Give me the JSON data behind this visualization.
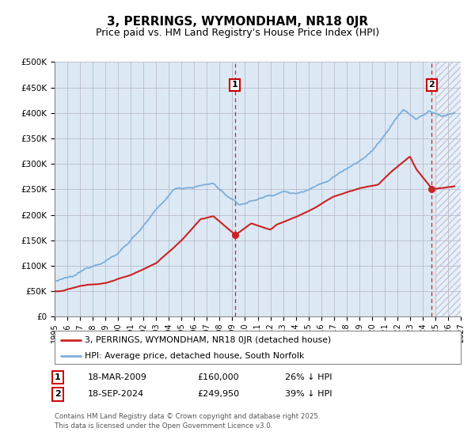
{
  "title": "3, PERRINGS, WYMONDHAM, NR18 0JR",
  "subtitle": "Price paid vs. HM Land Registry's House Price Index (HPI)",
  "ylim": [
    0,
    500000
  ],
  "xlim_start": 1995,
  "xlim_end": 2027,
  "yticks": [
    0,
    50000,
    100000,
    150000,
    200000,
    250000,
    300000,
    350000,
    400000,
    450000,
    500000
  ],
  "ytick_labels": [
    "£0",
    "£50K",
    "£100K",
    "£150K",
    "£200K",
    "£250K",
    "£300K",
    "£350K",
    "£400K",
    "£450K",
    "£500K"
  ],
  "hpi_color": "#7aaddb",
  "price_color": "#cc2222",
  "grid_color": "#bbbbcc",
  "bg_color": "#dce9f5",
  "sale1_x": 2009.21,
  "sale1_y": 160000,
  "sale2_x": 2024.72,
  "sale2_y": 249950,
  "shaded_start": 2025.0,
  "legend_line1": "3, PERRINGS, WYMONDHAM, NR18 0JR (detached house)",
  "legend_line2": "HPI: Average price, detached house, South Norfolk",
  "table_row1": [
    "1",
    "18-MAR-2009",
    "£160,000",
    "26% ↓ HPI"
  ],
  "table_row2": [
    "2",
    "18-SEP-2024",
    "£249,950",
    "39% ↓ HPI"
  ],
  "footnote": "Contains HM Land Registry data © Crown copyright and database right 2025.\nThis data is licensed under the Open Government Licence v3.0."
}
